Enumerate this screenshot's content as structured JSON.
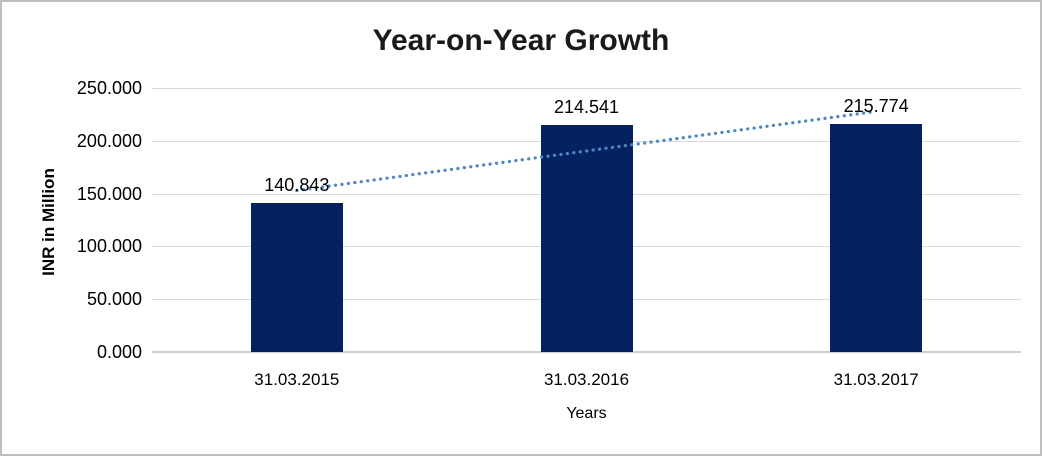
{
  "chart_data": {
    "type": "bar",
    "title": "Year-on-Year Growth",
    "xlabel": "Years",
    "ylabel": "INR in Million",
    "categories": [
      "31.03.2015",
      "31.03.2016",
      "31.03.2017"
    ],
    "series": [
      {
        "name": "INR in Million",
        "values": [
          140.843,
          214.541,
          215.774
        ]
      }
    ],
    "value_labels": [
      "140.843",
      "214.541",
      "215.774"
    ],
    "ylim": [
      0,
      250
    ],
    "yticks": [
      {
        "value": 0,
        "label": "0.000"
      },
      {
        "value": 50,
        "label": "50.000"
      },
      {
        "value": 100,
        "label": "100.000"
      },
      {
        "value": 150,
        "label": "150.000"
      },
      {
        "value": 200,
        "label": "200.000"
      },
      {
        "value": 250,
        "label": "250.000"
      }
    ],
    "grid": true,
    "legend_position": "none",
    "trendline": {
      "type": "linear",
      "style": "dotted",
      "applies_to": "INR in Million"
    },
    "colors": {
      "bar": "#04225f",
      "trendline": "#4e86c5",
      "gridline": "#d9d9d9",
      "axis_line": "#cfcfcf",
      "title_text": "#1a1a1a",
      "text": "#000000",
      "background": "#ffffff",
      "frame_border": "#bfbfbf"
    }
  }
}
